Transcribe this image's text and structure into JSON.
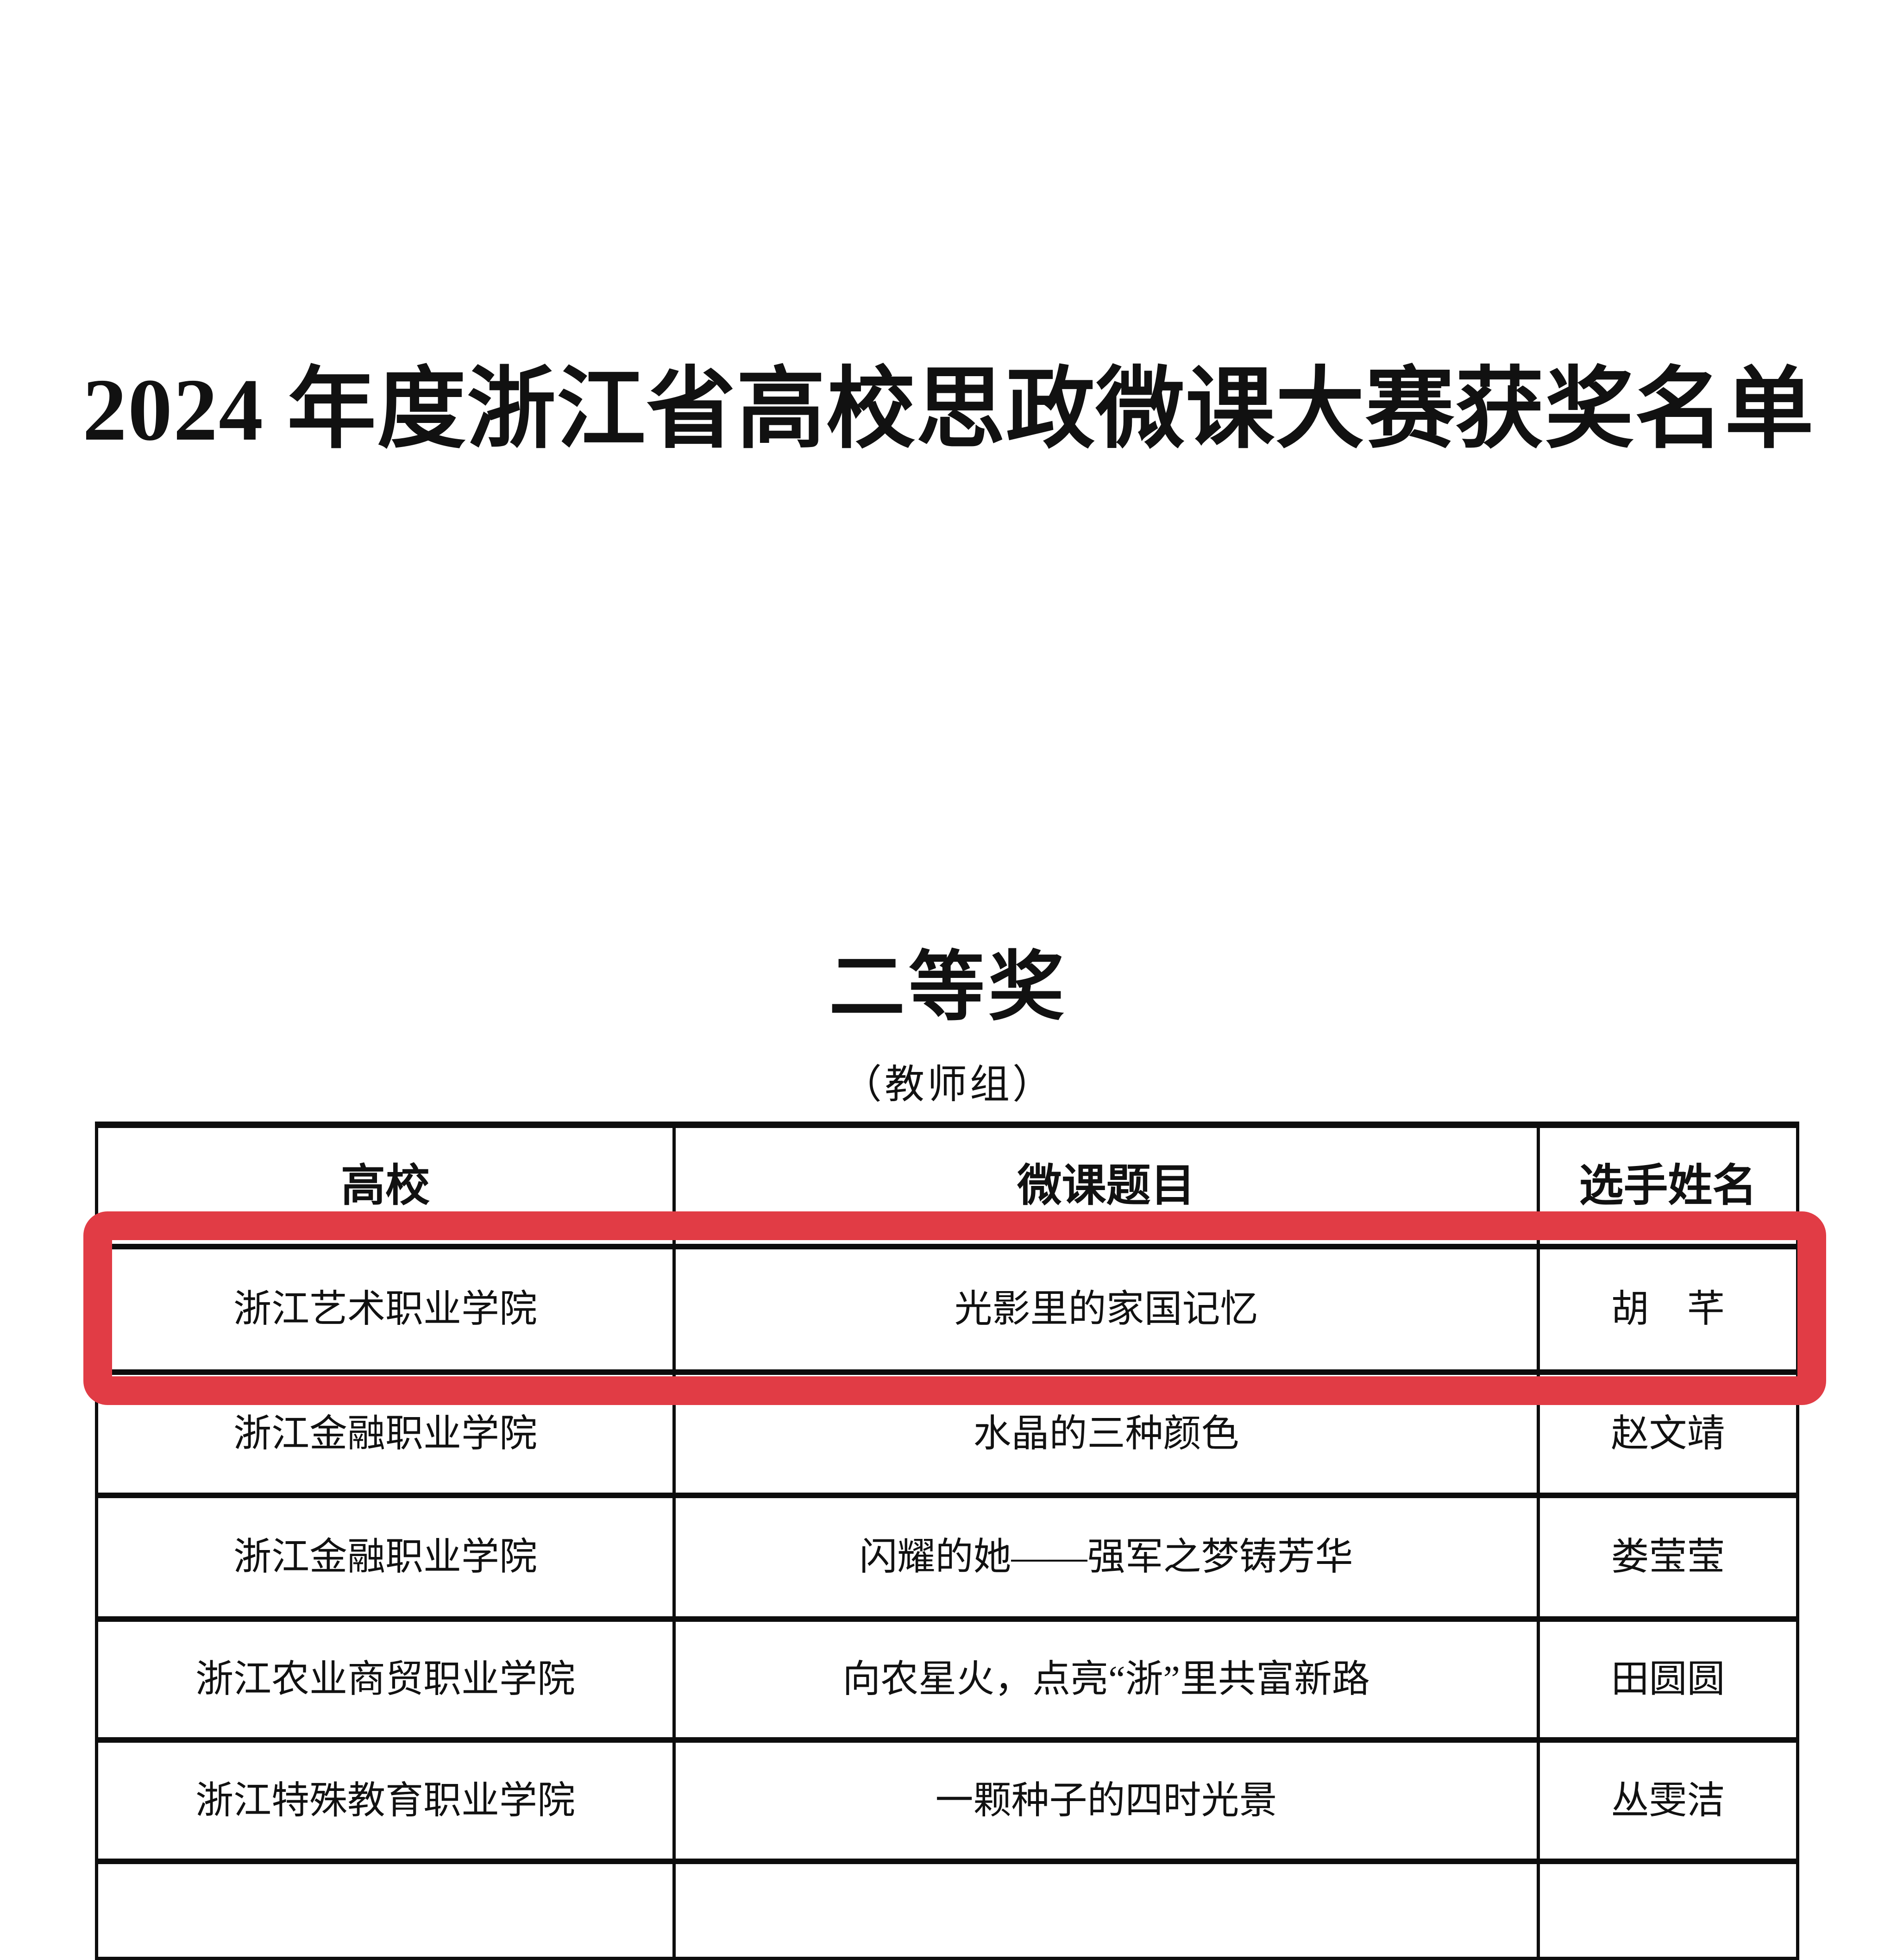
{
  "document": {
    "title": "2024 年度浙江省高校思政微课大赛获奖名单",
    "award_level": "二等奖",
    "group": "（教师组）"
  },
  "table": {
    "columns": [
      "高校",
      "微课题目",
      "选手姓名"
    ],
    "rows": [
      {
        "school": "浙江艺术职业学院",
        "topic": "光影里的家国记忆",
        "name": "胡　芊"
      },
      {
        "school": "浙江金融职业学院",
        "topic": "水晶的三种颜色",
        "name": "赵文靖"
      },
      {
        "school": "浙江金融职业学院",
        "topic": "闪耀的她——强军之梦铸芳华",
        "name": "娄莹莹"
      },
      {
        "school": "浙江农业商贸职业学院",
        "topic": "向农星火，点亮“浙”里共富新路",
        "name": "田圆圆"
      },
      {
        "school": "浙江特殊教育职业学院",
        "topic": "一颗种子的四时光景",
        "name": "丛雯洁"
      }
    ]
  },
  "annotation": {
    "highlighted_row_index": 0,
    "highlight_color": "#e13c45"
  }
}
